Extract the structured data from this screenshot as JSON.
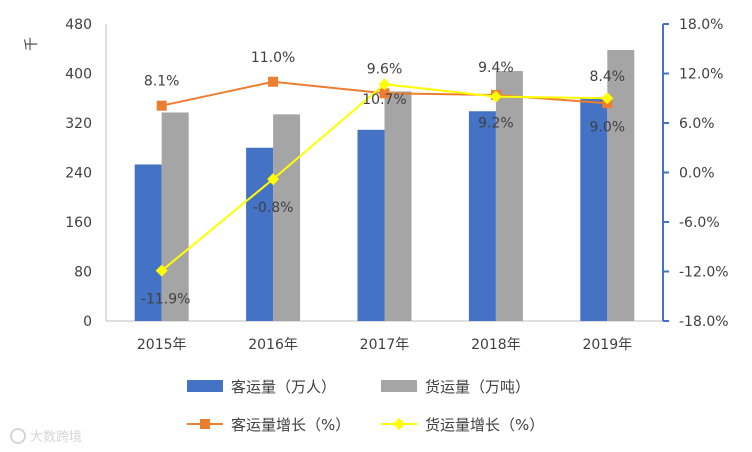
{
  "chart_data": {
    "type": "bar",
    "categories": [
      "2015年",
      "2016年",
      "2017年",
      "2018年",
      "2019年"
    ],
    "ylabel": "千",
    "ylim": [
      0,
      480
    ],
    "y_ticks": [
      "0",
      "80",
      "160",
      "240",
      "320",
      "400",
      "480"
    ],
    "y2lim": [
      -0.18,
      0.18
    ],
    "y2_ticks": [
      "-18.0%",
      "-12.0%",
      "-6.0%",
      "0.0%",
      "6.0%",
      "12.0%",
      "18.0%"
    ],
    "bar_series": [
      {
        "name": "客运量（万人）",
        "color": "#4472C4",
        "values": [
          253,
          280,
          309,
          339,
          362
        ]
      },
      {
        "name": "货运量（万吨）",
        "color": "#A5A5A5",
        "values": [
          337,
          334,
          371,
          404,
          438
        ]
      }
    ],
    "line_series": [
      {
        "name": "客运量增长（%）",
        "color": "#ED7D31",
        "marker": "square",
        "values": [
          0.081,
          0.11,
          0.096,
          0.094,
          0.084
        ],
        "labels": [
          "8.1%",
          "11.0%",
          "9.6%",
          "9.4%",
          "8.4%"
        ]
      },
      {
        "name": "货运量增长（%）",
        "color": "#FFFF00",
        "marker": "diamond",
        "values": [
          -0.119,
          -0.008,
          0.107,
          0.092,
          0.09
        ],
        "labels": [
          "-11.9%",
          "-0.8%",
          "10.7%",
          "9.2%",
          "9.0%"
        ]
      }
    ],
    "axis_color": "#4472C4",
    "grid": false,
    "legend": "bottom"
  },
  "watermark": "大数跨境"
}
